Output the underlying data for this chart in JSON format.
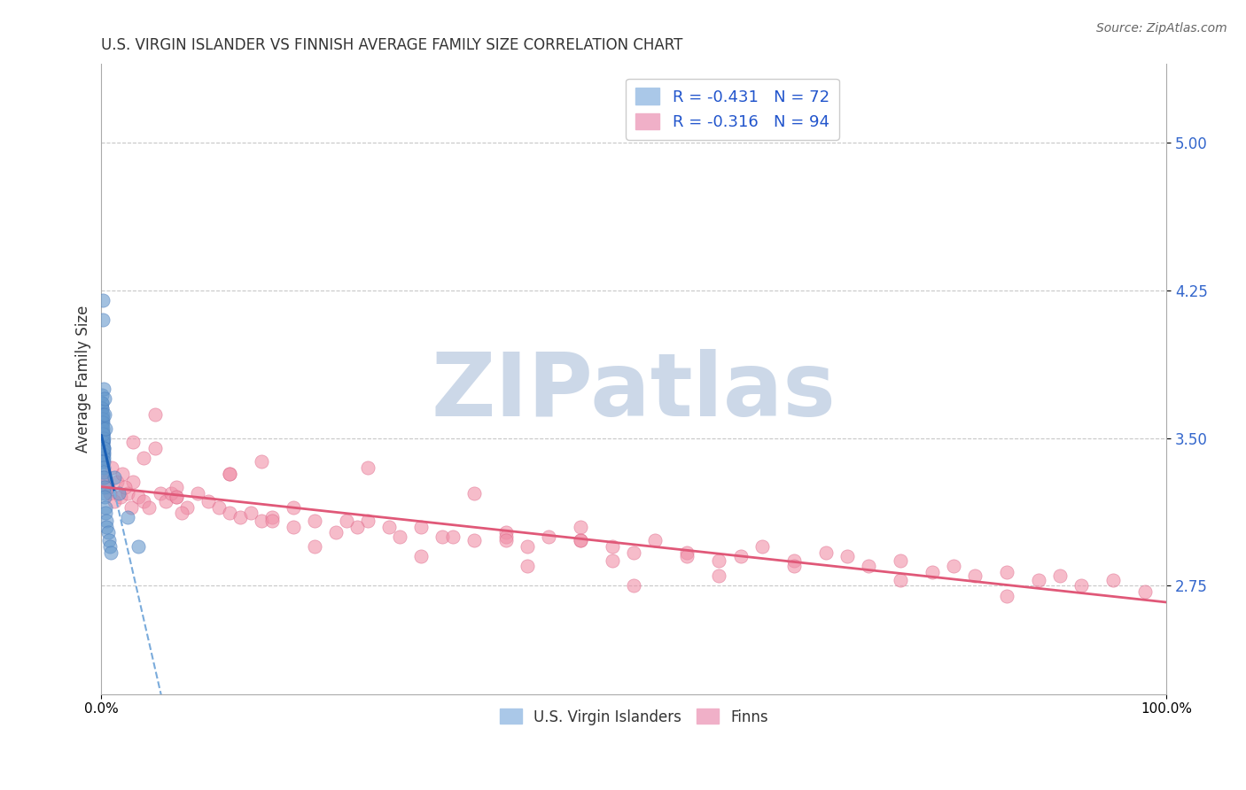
{
  "title": "U.S. VIRGIN ISLANDER VS FINNISH AVERAGE FAMILY SIZE CORRELATION CHART",
  "source_text": "Source: ZipAtlas.com",
  "ylabel": "Average Family Size",
  "xlim": [
    0.0,
    1.0
  ],
  "ylim": [
    2.2,
    5.4
  ],
  "yticks": [
    2.75,
    3.5,
    4.25,
    5.0
  ],
  "xticks": [
    0.0,
    1.0
  ],
  "xticklabels": [
    "0.0%",
    "100.0%"
  ],
  "background_color": "#ffffff",
  "grid_color": "#c8c8c8",
  "watermark": "ZIPatlas",
  "watermark_color": "#ccd8e8",
  "legend_labels_bottom": [
    "U.S. Virgin Islanders",
    "Finns"
  ],
  "vi_color": "#6699cc",
  "vi_edge_color": "#4477bb",
  "fi_color": "#f090a8",
  "fi_edge_color": "#dd6688",
  "vi_trend_color": "#1a5fb4",
  "vi_trend_dash_color": "#7aabdb",
  "fi_trend_color": "#e05878",
  "ytick_color": "#3366cc",
  "title_color": "#333333",
  "source_color": "#666666",
  "legend_text_color": "#2255cc",
  "vi_x": [
    0.0002,
    0.0003,
    0.0003,
    0.0004,
    0.0004,
    0.0005,
    0.0005,
    0.0006,
    0.0006,
    0.0007,
    0.0007,
    0.0008,
    0.0008,
    0.0009,
    0.0009,
    0.001,
    0.001,
    0.001,
    0.001,
    0.001,
    0.0012,
    0.0012,
    0.0013,
    0.0013,
    0.0014,
    0.0014,
    0.0015,
    0.0015,
    0.0016,
    0.0016,
    0.0017,
    0.0018,
    0.0019,
    0.002,
    0.002,
    0.002,
    0.0022,
    0.0023,
    0.0025,
    0.003,
    0.003,
    0.003,
    0.004,
    0.004,
    0.005,
    0.005,
    0.006,
    0.007,
    0.008,
    0.009,
    0.0005,
    0.0006,
    0.0007,
    0.0008,
    0.0009,
    0.001,
    0.001,
    0.0012,
    0.0014,
    0.0016,
    0.0018,
    0.002,
    0.003,
    0.004,
    0.002,
    0.003,
    0.001,
    0.001,
    0.012,
    0.016,
    0.025,
    0.035
  ],
  "vi_y": [
    3.5,
    3.45,
    3.55,
    3.4,
    3.6,
    3.52,
    3.48,
    3.58,
    3.42,
    3.62,
    3.54,
    3.46,
    3.56,
    3.44,
    3.58,
    3.52,
    3.48,
    3.45,
    3.42,
    3.38,
    3.5,
    3.47,
    3.53,
    3.49,
    3.52,
    3.46,
    3.5,
    3.48,
    3.45,
    3.42,
    3.48,
    3.45,
    3.43,
    3.42,
    3.4,
    3.38,
    3.35,
    3.33,
    3.3,
    3.25,
    3.22,
    3.2,
    3.15,
    3.12,
    3.08,
    3.05,
    3.02,
    2.98,
    2.95,
    2.92,
    3.65,
    3.68,
    3.72,
    3.68,
    3.65,
    3.62,
    3.6,
    3.58,
    3.55,
    3.52,
    3.5,
    3.45,
    3.62,
    3.55,
    3.75,
    3.7,
    4.2,
    4.1,
    3.3,
    3.22,
    3.1,
    2.95
  ],
  "fi_x": [
    0.002,
    0.004,
    0.006,
    0.008,
    0.01,
    0.012,
    0.015,
    0.018,
    0.02,
    0.025,
    0.03,
    0.035,
    0.04,
    0.045,
    0.05,
    0.055,
    0.06,
    0.07,
    0.08,
    0.09,
    0.1,
    0.11,
    0.12,
    0.13,
    0.14,
    0.15,
    0.16,
    0.18,
    0.2,
    0.22,
    0.25,
    0.28,
    0.3,
    0.32,
    0.35,
    0.38,
    0.4,
    0.42,
    0.45,
    0.48,
    0.5,
    0.52,
    0.55,
    0.58,
    0.6,
    0.62,
    0.65,
    0.68,
    0.7,
    0.72,
    0.75,
    0.78,
    0.8,
    0.82,
    0.85,
    0.88,
    0.9,
    0.92,
    0.95,
    0.98,
    0.022,
    0.028,
    0.065,
    0.075,
    0.16,
    0.24,
    0.38,
    0.45,
    0.55,
    0.65,
    0.75,
    0.85,
    0.04,
    0.07,
    0.12,
    0.2,
    0.3,
    0.4,
    0.5,
    0.35,
    0.25,
    0.45,
    0.15,
    0.05,
    0.03,
    0.07,
    0.12,
    0.18,
    0.23,
    0.27,
    0.33,
    0.38,
    0.48,
    0.58
  ],
  "fi_y": [
    3.3,
    3.28,
    3.25,
    3.22,
    3.35,
    3.18,
    3.28,
    3.2,
    3.32,
    3.22,
    3.28,
    3.2,
    3.18,
    3.15,
    3.45,
    3.22,
    3.18,
    3.2,
    3.15,
    3.22,
    3.18,
    3.15,
    3.12,
    3.1,
    3.12,
    3.08,
    3.1,
    3.05,
    3.08,
    3.02,
    3.08,
    3.0,
    3.05,
    3.0,
    2.98,
    3.02,
    2.95,
    3.0,
    2.98,
    2.95,
    2.92,
    2.98,
    2.92,
    2.88,
    2.9,
    2.95,
    2.88,
    2.92,
    2.9,
    2.85,
    2.88,
    2.82,
    2.85,
    2.8,
    2.82,
    2.78,
    2.8,
    2.75,
    2.78,
    2.72,
    3.25,
    3.15,
    3.22,
    3.12,
    3.08,
    3.05,
    3.0,
    2.98,
    2.9,
    2.85,
    2.78,
    2.7,
    3.4,
    3.25,
    3.32,
    2.95,
    2.9,
    2.85,
    2.75,
    3.22,
    3.35,
    3.05,
    3.38,
    3.62,
    3.48,
    3.2,
    3.32,
    3.15,
    3.08,
    3.05,
    3.0,
    2.98,
    2.88,
    2.8
  ],
  "vi_trend_x0": 0.0,
  "vi_trend_x1": 0.012,
  "vi_trend_x2": 0.1,
  "fi_trend_x0": 0.0,
  "fi_trend_x1": 1.0
}
